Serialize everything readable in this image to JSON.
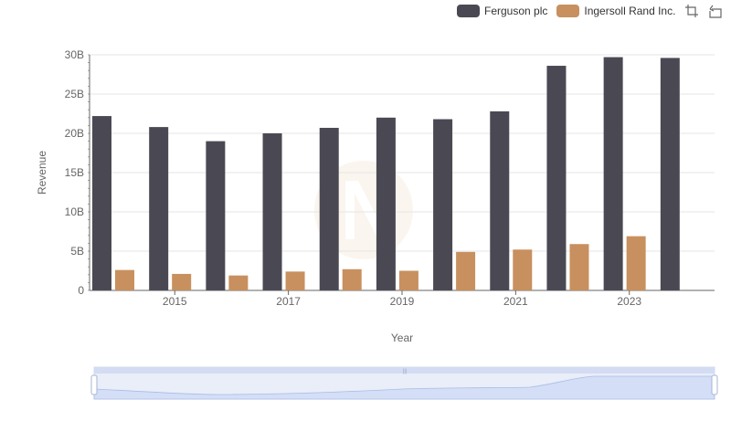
{
  "chart_data": {
    "type": "bar",
    "xlabel": "Year",
    "ylabel": "Revenue",
    "x": [
      2014,
      2015,
      2016,
      2017,
      2018,
      2019,
      2020,
      2021,
      2022,
      2023,
      2024
    ],
    "x_tick_labels": [
      "2015",
      "2017",
      "2019",
      "2021",
      "2023"
    ],
    "y_tick_labels": [
      "0",
      "5B",
      "10B",
      "15B",
      "20B",
      "25B",
      "30B"
    ],
    "ylim": [
      0,
      30000000000
    ],
    "grid": true,
    "legend_position": "top-right",
    "series": [
      {
        "name": "Ferguson plc",
        "color": "#4a4953",
        "values": [
          22200000000,
          20800000000,
          19000000000,
          20000000000,
          20700000000,
          22000000000,
          21800000000,
          22800000000,
          28600000000,
          29700000000,
          29600000000
        ]
      },
      {
        "name": "Ingersoll Rand Inc.",
        "color": "#c8905e",
        "values": [
          2600000000,
          2100000000,
          1900000000,
          2400000000,
          2700000000,
          2500000000,
          4900000000,
          5200000000,
          5900000000,
          6900000000,
          null
        ]
      }
    ]
  },
  "toolbox": {
    "icons": [
      "zoom-icon",
      "reset-icon"
    ]
  }
}
